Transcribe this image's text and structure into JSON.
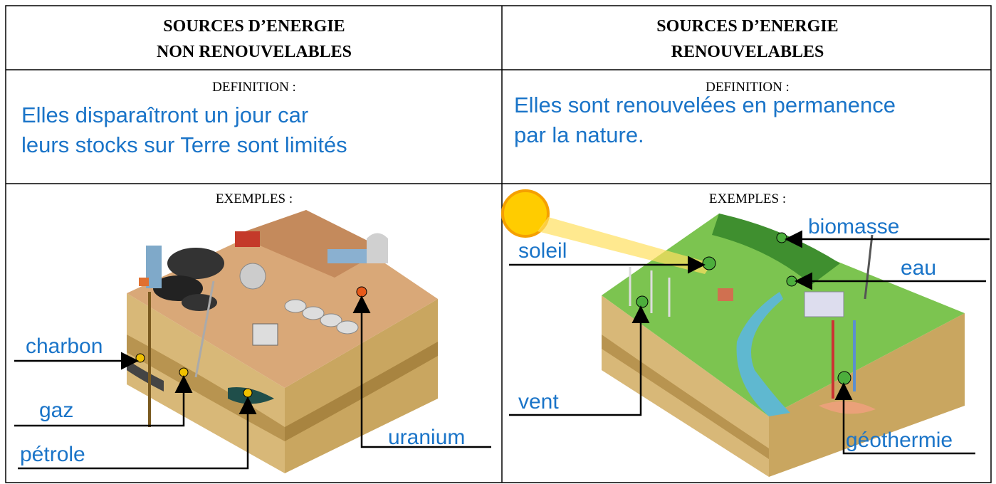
{
  "table": {
    "columns": [
      {
        "title": [
          "SOURCES D’ENERGIE",
          "NON RENOUVELABLES"
        ],
        "definition_label": "DEFINITION :",
        "definition": [
          "Elles disparaîtront un jour car",
          "leurs stocks sur Terre sont limités"
        ],
        "examples_label": "EXEMPLES :",
        "examples": [
          "charbon",
          "gaz",
          "pétrole",
          "uranium"
        ]
      },
      {
        "title": [
          "SOURCES D’ENERGIE",
          "RENOUVELABLES"
        ],
        "definition_label": "DEFINITION :",
        "definition": [
          "Elles sont renouvelées en permanence",
          "par la nature."
        ],
        "examples_label": "EXEMPLES :",
        "examples": [
          "soleil",
          "biomasse",
          "eau",
          "vent",
          "géothermie"
        ]
      }
    ]
  }
}
